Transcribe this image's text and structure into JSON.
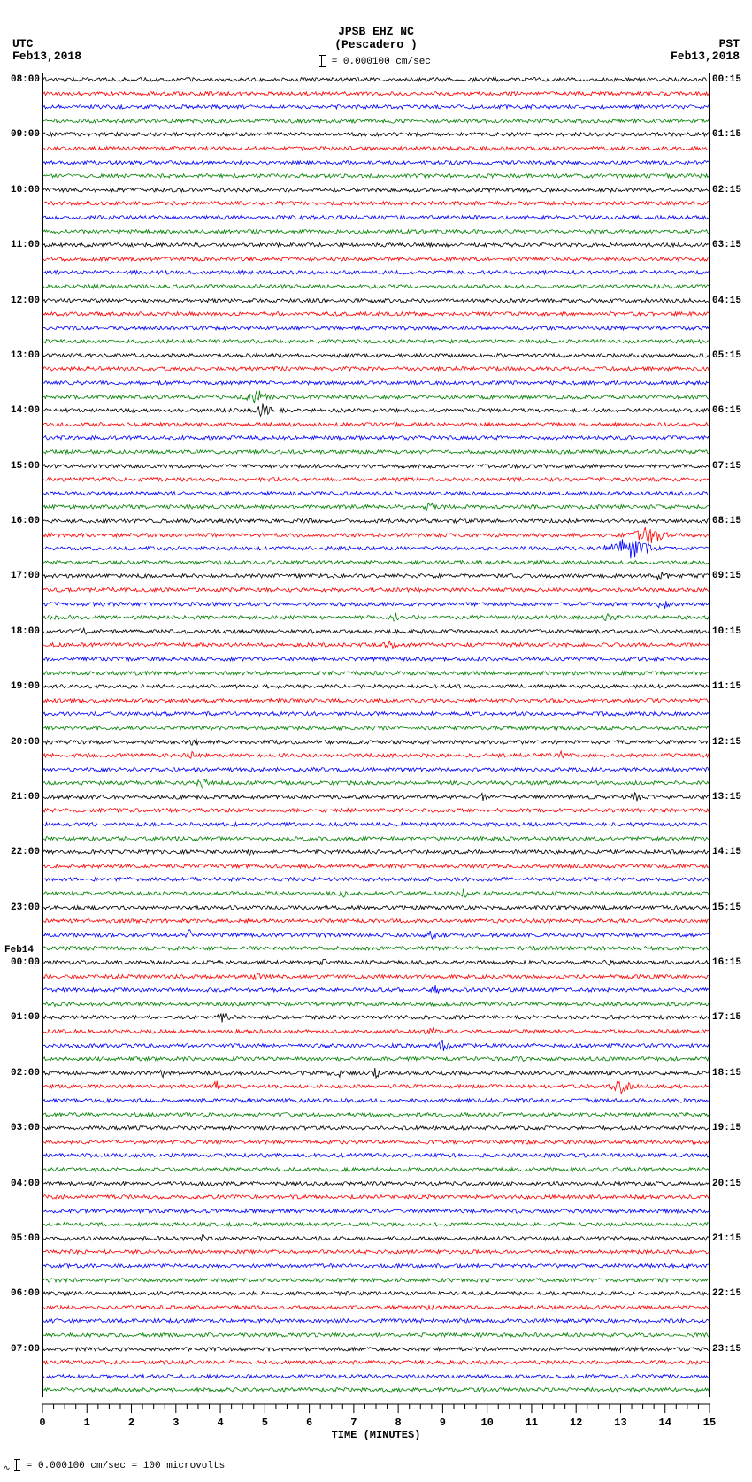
{
  "header": {
    "station": "JPSB EHZ NC",
    "location": "(Pescadero )",
    "scale_text": "= 0.000100 cm/sec"
  },
  "timezone_left": "UTC",
  "timezone_right": "PST",
  "date_left": "Feb13,2018",
  "date_right": "Feb13,2018",
  "xaxis": {
    "label": "TIME (MINUTES)",
    "min": 0,
    "max": 15,
    "major_ticks": [
      0,
      1,
      2,
      3,
      4,
      5,
      6,
      7,
      8,
      9,
      10,
      11,
      12,
      13,
      14,
      15
    ],
    "minor_per_major": 4
  },
  "footer": {
    "text": "= 0.000100 cm/sec =   100 microvolts"
  },
  "colors": {
    "sequence": [
      "#000000",
      "#ff0000",
      "#0000ff",
      "#008000"
    ],
    "background": "#ffffff",
    "axis": "#000000"
  },
  "trace_style": {
    "stroke_width": 0.8,
    "base_amplitude": 2.2,
    "points_per_trace": 640
  },
  "day_change": {
    "utc_row_index": 64,
    "label": "Feb14"
  },
  "traces": [
    {
      "utc": "08:00",
      "pst": "00:15",
      "bursts": []
    },
    {
      "utc": "",
      "pst": "",
      "bursts": []
    },
    {
      "utc": "",
      "pst": "",
      "bursts": []
    },
    {
      "utc": "",
      "pst": "",
      "bursts": []
    },
    {
      "utc": "09:00",
      "pst": "01:15",
      "bursts": []
    },
    {
      "utc": "",
      "pst": "",
      "bursts": []
    },
    {
      "utc": "",
      "pst": "",
      "bursts": []
    },
    {
      "utc": "",
      "pst": "",
      "bursts": []
    },
    {
      "utc": "10:00",
      "pst": "02:15",
      "bursts": []
    },
    {
      "utc": "",
      "pst": "",
      "bursts": []
    },
    {
      "utc": "",
      "pst": "",
      "bursts": []
    },
    {
      "utc": "",
      "pst": "",
      "bursts": []
    },
    {
      "utc": "11:00",
      "pst": "03:15",
      "bursts": []
    },
    {
      "utc": "",
      "pst": "",
      "bursts": []
    },
    {
      "utc": "",
      "pst": "",
      "bursts": []
    },
    {
      "utc": "",
      "pst": "",
      "bursts": []
    },
    {
      "utc": "12:00",
      "pst": "04:15",
      "bursts": []
    },
    {
      "utc": "",
      "pst": "",
      "bursts": []
    },
    {
      "utc": "",
      "pst": "",
      "bursts": []
    },
    {
      "utc": "",
      "pst": "",
      "bursts": []
    },
    {
      "utc": "13:00",
      "pst": "05:15",
      "bursts": []
    },
    {
      "utc": "",
      "pst": "",
      "bursts": []
    },
    {
      "utc": "",
      "pst": "",
      "bursts": []
    },
    {
      "utc": "",
      "pst": "",
      "bursts": [
        {
          "pos": 0.32,
          "amp": 4.2,
          "width": 0.05
        }
      ]
    },
    {
      "utc": "14:00",
      "pst": "06:15",
      "bursts": [
        {
          "pos": 0.33,
          "amp": 3.5,
          "width": 0.04
        }
      ]
    },
    {
      "utc": "",
      "pst": "",
      "bursts": []
    },
    {
      "utc": "",
      "pst": "",
      "bursts": []
    },
    {
      "utc": "",
      "pst": "",
      "bursts": []
    },
    {
      "utc": "15:00",
      "pst": "07:15",
      "bursts": []
    },
    {
      "utc": "",
      "pst": "",
      "bursts": []
    },
    {
      "utc": "",
      "pst": "",
      "bursts": []
    },
    {
      "utc": "",
      "pst": "",
      "bursts": [
        {
          "pos": 0.58,
          "amp": 2.6,
          "width": 0.03
        }
      ]
    },
    {
      "utc": "16:00",
      "pst": "08:15",
      "bursts": [
        {
          "pos": 0.4,
          "amp": 2.2,
          "width": 0.02
        }
      ]
    },
    {
      "utc": "",
      "pst": "",
      "bursts": [
        {
          "pos": 0.91,
          "amp": 5.0,
          "width": 0.06
        }
      ]
    },
    {
      "utc": "",
      "pst": "",
      "bursts": [
        {
          "pos": 0.88,
          "amp": 6.5,
          "width": 0.08
        }
      ]
    },
    {
      "utc": "",
      "pst": "",
      "bursts": []
    },
    {
      "utc": "17:00",
      "pst": "09:15",
      "bursts": [
        {
          "pos": 0.93,
          "amp": 3.0,
          "width": 0.04
        }
      ]
    },
    {
      "utc": "",
      "pst": "",
      "bursts": [
        {
          "pos": 0.1,
          "amp": 2.2,
          "width": 0.02
        }
      ]
    },
    {
      "utc": "",
      "pst": "",
      "bursts": [
        {
          "pos": 0.93,
          "amp": 3.2,
          "width": 0.03
        }
      ]
    },
    {
      "utc": "",
      "pst": "",
      "bursts": [
        {
          "pos": 0.53,
          "amp": 2.8,
          "width": 0.02
        },
        {
          "pos": 0.85,
          "amp": 2.8,
          "width": 0.03
        }
      ]
    },
    {
      "utc": "18:00",
      "pst": "10:15",
      "bursts": [
        {
          "pos": 0.06,
          "amp": 2.4,
          "width": 0.03
        }
      ]
    },
    {
      "utc": "",
      "pst": "",
      "bursts": [
        {
          "pos": 0.52,
          "amp": 2.4,
          "width": 0.04
        }
      ]
    },
    {
      "utc": "",
      "pst": "",
      "bursts": []
    },
    {
      "utc": "",
      "pst": "",
      "bursts": []
    },
    {
      "utc": "19:00",
      "pst": "11:15",
      "bursts": []
    },
    {
      "utc": "",
      "pst": "",
      "bursts": []
    },
    {
      "utc": "",
      "pst": "",
      "bursts": []
    },
    {
      "utc": "",
      "pst": "",
      "bursts": []
    },
    {
      "utc": "20:00",
      "pst": "12:15",
      "bursts": [
        {
          "pos": 0.23,
          "amp": 2.8,
          "width": 0.03
        }
      ]
    },
    {
      "utc": "",
      "pst": "",
      "bursts": [
        {
          "pos": 0.22,
          "amp": 2.6,
          "width": 0.03
        },
        {
          "pos": 0.78,
          "amp": 2.6,
          "width": 0.03
        }
      ]
    },
    {
      "utc": "",
      "pst": "",
      "bursts": []
    },
    {
      "utc": "",
      "pst": "",
      "bursts": [
        {
          "pos": 0.24,
          "amp": 3.0,
          "width": 0.03
        }
      ]
    },
    {
      "utc": "21:00",
      "pst": "13:15",
      "bursts": [
        {
          "pos": 0.66,
          "amp": 2.4,
          "width": 0.02
        },
        {
          "pos": 0.89,
          "amp": 3.0,
          "width": 0.03
        }
      ]
    },
    {
      "utc": "",
      "pst": "",
      "bursts": []
    },
    {
      "utc": "",
      "pst": "",
      "bursts": [
        {
          "pos": 0.55,
          "amp": 2.2,
          "width": 0.02
        }
      ]
    },
    {
      "utc": "",
      "pst": "",
      "bursts": []
    },
    {
      "utc": "22:00",
      "pst": "14:15",
      "bursts": [
        {
          "pos": 0.31,
          "amp": 2.2,
          "width": 0.02
        }
      ]
    },
    {
      "utc": "",
      "pst": "",
      "bursts": []
    },
    {
      "utc": "",
      "pst": "",
      "bursts": []
    },
    {
      "utc": "",
      "pst": "",
      "bursts": [
        {
          "pos": 0.45,
          "amp": 2.4,
          "width": 0.02
        },
        {
          "pos": 0.63,
          "amp": 2.8,
          "width": 0.03
        }
      ]
    },
    {
      "utc": "23:00",
      "pst": "15:15",
      "bursts": []
    },
    {
      "utc": "",
      "pst": "",
      "bursts": []
    },
    {
      "utc": "",
      "pst": "",
      "bursts": [
        {
          "pos": 0.22,
          "amp": 3.4,
          "width": 0.02
        },
        {
          "pos": 0.58,
          "amp": 3.2,
          "width": 0.03
        }
      ]
    },
    {
      "utc": "",
      "pst": "",
      "bursts": []
    },
    {
      "utc": "00:00",
      "pst": "16:15",
      "bursts": [
        {
          "pos": 0.42,
          "amp": 2.4,
          "width": 0.02
        },
        {
          "pos": 0.85,
          "amp": 2.6,
          "width": 0.03
        }
      ]
    },
    {
      "utc": "",
      "pst": "",
      "bursts": [
        {
          "pos": 0.32,
          "amp": 2.6,
          "width": 0.02
        }
      ]
    },
    {
      "utc": "",
      "pst": "",
      "bursts": [
        {
          "pos": 0.59,
          "amp": 3.2,
          "width": 0.02
        }
      ]
    },
    {
      "utc": "",
      "pst": "",
      "bursts": [
        {
          "pos": 0.02,
          "amp": 2.4,
          "width": 0.02
        }
      ]
    },
    {
      "utc": "01:00",
      "pst": "17:15",
      "bursts": [
        {
          "pos": 0.27,
          "amp": 3.0,
          "width": 0.03
        }
      ]
    },
    {
      "utc": "",
      "pst": "",
      "bursts": [
        {
          "pos": 0.58,
          "amp": 2.6,
          "width": 0.03
        }
      ]
    },
    {
      "utc": "",
      "pst": "",
      "bursts": [
        {
          "pos": 0.6,
          "amp": 3.6,
          "width": 0.03
        }
      ]
    },
    {
      "utc": "",
      "pst": "",
      "bursts": [
        {
          "pos": 0.72,
          "amp": 2.6,
          "width": 0.02
        }
      ]
    },
    {
      "utc": "02:00",
      "pst": "18:15",
      "bursts": [
        {
          "pos": 0.18,
          "amp": 2.4,
          "width": 0.02
        },
        {
          "pos": 0.44,
          "amp": 3.2,
          "width": 0.04
        },
        {
          "pos": 0.5,
          "amp": 3.0,
          "width": 0.03
        }
      ]
    },
    {
      "utc": "",
      "pst": "",
      "bursts": [
        {
          "pos": 0.26,
          "amp": 3.2,
          "width": 0.02
        },
        {
          "pos": 0.87,
          "amp": 4.0,
          "width": 0.05
        }
      ]
    },
    {
      "utc": "",
      "pst": "",
      "bursts": [
        {
          "pos": 0.3,
          "amp": 2.2,
          "width": 0.02
        }
      ]
    },
    {
      "utc": "",
      "pst": "",
      "bursts": []
    },
    {
      "utc": "03:00",
      "pst": "19:15",
      "bursts": []
    },
    {
      "utc": "",
      "pst": "",
      "bursts": []
    },
    {
      "utc": "",
      "pst": "",
      "bursts": []
    },
    {
      "utc": "",
      "pst": "",
      "bursts": []
    },
    {
      "utc": "04:00",
      "pst": "20:15",
      "bursts": []
    },
    {
      "utc": "",
      "pst": "",
      "bursts": []
    },
    {
      "utc": "",
      "pst": "",
      "bursts": []
    },
    {
      "utc": "",
      "pst": "",
      "bursts": []
    },
    {
      "utc": "05:00",
      "pst": "21:15",
      "bursts": [
        {
          "pos": 0.24,
          "amp": 2.4,
          "width": 0.02
        },
        {
          "pos": 0.89,
          "amp": 2.2,
          "width": 0.02
        }
      ]
    },
    {
      "utc": "",
      "pst": "",
      "bursts": []
    },
    {
      "utc": "",
      "pst": "",
      "bursts": []
    },
    {
      "utc": "",
      "pst": "",
      "bursts": []
    },
    {
      "utc": "06:00",
      "pst": "22:15",
      "bursts": []
    },
    {
      "utc": "",
      "pst": "",
      "bursts": [
        {
          "pos": 0.58,
          "amp": 2.4,
          "width": 0.02
        }
      ]
    },
    {
      "utc": "",
      "pst": "",
      "bursts": []
    },
    {
      "utc": "",
      "pst": "",
      "bursts": []
    },
    {
      "utc": "07:00",
      "pst": "23:15",
      "bursts": []
    },
    {
      "utc": "",
      "pst": "",
      "bursts": [
        {
          "pos": 0.28,
          "amp": 2.0,
          "width": 0.02
        }
      ]
    },
    {
      "utc": "",
      "pst": "",
      "bursts": []
    },
    {
      "utc": "",
      "pst": "",
      "bursts": []
    }
  ]
}
